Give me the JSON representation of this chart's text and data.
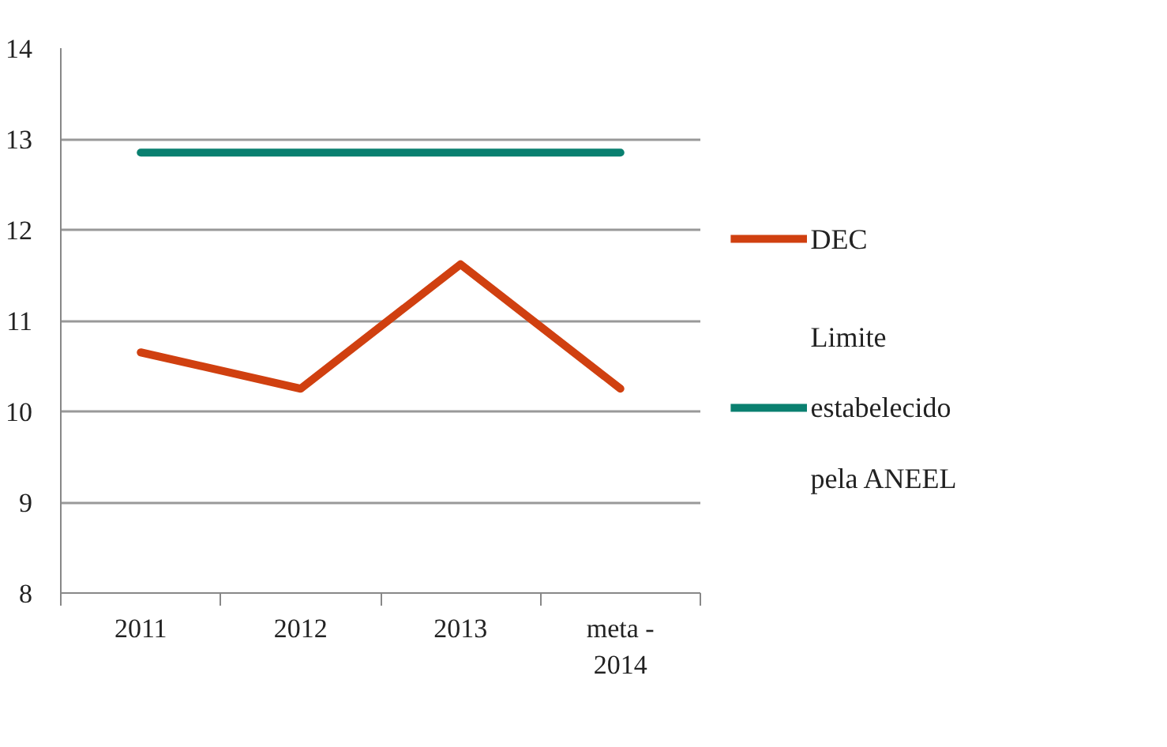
{
  "chart_data": {
    "type": "line",
    "categories": [
      "2011",
      "2012",
      "2013",
      "meta - 2014"
    ],
    "series": [
      {
        "name": "DEC",
        "color": "#d04010",
        "values": [
          10.65,
          10.25,
          11.62,
          10.25
        ]
      },
      {
        "name": "Limite estabelecido pela ANEEL",
        "color": "#0a8070",
        "values": [
          12.85,
          12.85,
          12.85,
          12.85
        ]
      }
    ],
    "ylim": [
      8,
      14
    ],
    "yticks": [
      8,
      9,
      10,
      11,
      12,
      13,
      14
    ],
    "grid": "y",
    "legend": "right",
    "marker": "none",
    "line_style": "solid"
  }
}
